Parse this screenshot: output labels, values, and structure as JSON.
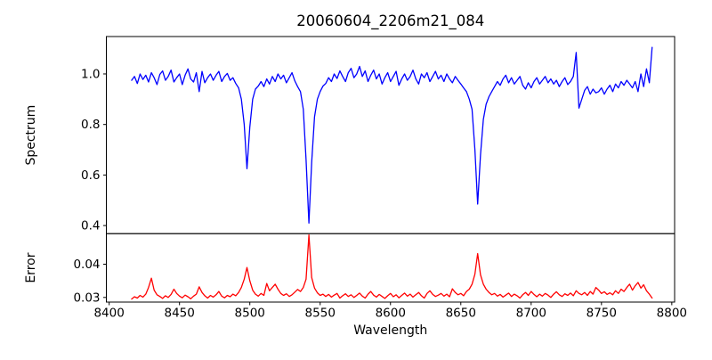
{
  "figure": {
    "background": "#ffffff",
    "text_color": "#000000",
    "spine_color": "#000000"
  },
  "chart_data": {
    "type": "line",
    "title": "20060604_2206m21_084",
    "xlabel": "Wavelength",
    "grid": false,
    "legend": "none",
    "x_start": 8416,
    "x_step": 2,
    "xlim": [
      8398,
      8802
    ],
    "xticks": [
      8400,
      8450,
      8500,
      8550,
      8600,
      8650,
      8700,
      8750,
      8800
    ],
    "panels": [
      {
        "name": "spectrum",
        "ylabel": "Spectrum",
        "color": "#0000ff",
        "ylim": [
          0.368,
          1.148
        ],
        "yticks": [
          0.4,
          0.6,
          0.8,
          1.0
        ],
        "ytick_labels": [
          "0.4",
          "0.6",
          "0.8",
          "1.0"
        ],
        "values": [
          0.975,
          0.99,
          0.962,
          1.0,
          0.978,
          0.995,
          0.968,
          1.005,
          0.985,
          0.958,
          0.998,
          1.012,
          0.975,
          0.99,
          1.015,
          0.968,
          0.985,
          1.0,
          0.958,
          0.995,
          1.02,
          0.98,
          0.968,
          1.005,
          0.93,
          1.01,
          0.965,
          0.985,
          1.0,
          0.975,
          0.995,
          1.01,
          0.97,
          0.99,
          1.002,
          0.975,
          0.985,
          0.962,
          0.945,
          0.9,
          0.8,
          0.625,
          0.79,
          0.9,
          0.94,
          0.952,
          0.97,
          0.95,
          0.98,
          0.96,
          0.99,
          0.97,
          1.0,
          0.98,
          0.995,
          0.965,
          0.985,
          1.005,
          0.972,
          0.95,
          0.93,
          0.86,
          0.66,
          0.41,
          0.65,
          0.83,
          0.9,
          0.93,
          0.952,
          0.962,
          0.985,
          0.97,
          1.0,
          0.982,
          1.012,
          0.99,
          0.97,
          1.005,
          1.022,
          0.985,
          1.0,
          1.03,
          0.99,
          1.012,
          0.97,
          0.995,
          1.015,
          0.98,
          1.0,
          0.96,
          0.985,
          1.005,
          0.97,
          0.99,
          1.01,
          0.955,
          0.98,
          1.0,
          0.975,
          0.99,
          1.015,
          0.98,
          0.96,
          1.0,
          0.985,
          1.005,
          0.97,
          0.99,
          1.01,
          0.98,
          0.995,
          0.97,
          1.0,
          0.98,
          0.965,
          0.99,
          0.975,
          0.96,
          0.945,
          0.93,
          0.9,
          0.86,
          0.7,
          0.485,
          0.68,
          0.82,
          0.88,
          0.91,
          0.93,
          0.95,
          0.97,
          0.955,
          0.98,
          0.995,
          0.965,
          0.985,
          0.96,
          0.975,
          0.99,
          0.955,
          0.94,
          0.965,
          0.945,
          0.97,
          0.985,
          0.96,
          0.975,
          0.99,
          0.965,
          0.98,
          0.96,
          0.975,
          0.95,
          0.97,
          0.985,
          0.958,
          0.97,
          0.99,
          1.085,
          0.865,
          0.9,
          0.935,
          0.95,
          0.92,
          0.94,
          0.925,
          0.93,
          0.945,
          0.92,
          0.94,
          0.955,
          0.93,
          0.96,
          0.945,
          0.97,
          0.955,
          0.975,
          0.96,
          0.945,
          0.97,
          0.93,
          1.0,
          0.95,
          1.02,
          0.965,
          1.105
        ]
      },
      {
        "name": "error",
        "ylabel": "Error",
        "color": "#ff0000",
        "ylim": [
          0.0286,
          0.0492
        ],
        "yticks": [
          0.03,
          0.04
        ],
        "ytick_labels": [
          "0.03",
          "0.04"
        ],
        "values": [
          0.0295,
          0.0302,
          0.0298,
          0.0306,
          0.0301,
          0.031,
          0.033,
          0.0358,
          0.0322,
          0.0308,
          0.0303,
          0.0297,
          0.0305,
          0.03,
          0.0309,
          0.0325,
          0.0312,
          0.0304,
          0.0299,
          0.0307,
          0.0302,
          0.0296,
          0.0304,
          0.031,
          0.0332,
          0.0315,
          0.0305,
          0.0298,
          0.0306,
          0.0301,
          0.0308,
          0.0318,
          0.0304,
          0.0299,
          0.0306,
          0.0302,
          0.031,
          0.0305,
          0.0315,
          0.033,
          0.0355,
          0.039,
          0.035,
          0.0322,
          0.031,
          0.0304,
          0.0312,
          0.0306,
          0.0342,
          0.032,
          0.033,
          0.034,
          0.0325,
          0.0312,
          0.0306,
          0.0311,
          0.0303,
          0.0308,
          0.0316,
          0.0324,
          0.0318,
          0.033,
          0.0355,
          0.0488,
          0.036,
          0.0328,
          0.0314,
          0.0306,
          0.031,
          0.0303,
          0.0309,
          0.0301,
          0.0307,
          0.0312,
          0.0298,
          0.0305,
          0.0311,
          0.0303,
          0.0308,
          0.03,
          0.0306,
          0.0313,
          0.0304,
          0.0298,
          0.031,
          0.0318,
          0.0307,
          0.0301,
          0.0309,
          0.0303,
          0.0297,
          0.0305,
          0.0312,
          0.0302,
          0.0308,
          0.0299,
          0.0306,
          0.0313,
          0.0304,
          0.031,
          0.0301,
          0.0308,
          0.0315,
          0.0305,
          0.0298,
          0.0312,
          0.032,
          0.0309,
          0.0303,
          0.0307,
          0.0312,
          0.0304,
          0.031,
          0.0302,
          0.0326,
          0.0315,
          0.0308,
          0.0312,
          0.0305,
          0.0318,
          0.0325,
          0.034,
          0.037,
          0.0432,
          0.0368,
          0.034,
          0.0325,
          0.0315,
          0.0308,
          0.0312,
          0.0304,
          0.0309,
          0.0301,
          0.0307,
          0.0313,
          0.0303,
          0.031,
          0.0305,
          0.0298,
          0.0308,
          0.0315,
          0.0306,
          0.0318,
          0.0309,
          0.0302,
          0.031,
          0.0304,
          0.0312,
          0.0307,
          0.03,
          0.031,
          0.0317,
          0.0308,
          0.0303,
          0.0311,
          0.0306,
          0.0313,
          0.0305,
          0.032,
          0.0312,
          0.0308,
          0.0315,
          0.0306,
          0.0318,
          0.031,
          0.033,
          0.0322,
          0.0312,
          0.0317,
          0.0309,
          0.0314,
          0.0308,
          0.032,
          0.0312,
          0.0325,
          0.0318,
          0.033,
          0.034,
          0.0322,
          0.0335,
          0.0345,
          0.0328,
          0.0338,
          0.032,
          0.031,
          0.0298
        ]
      }
    ]
  }
}
